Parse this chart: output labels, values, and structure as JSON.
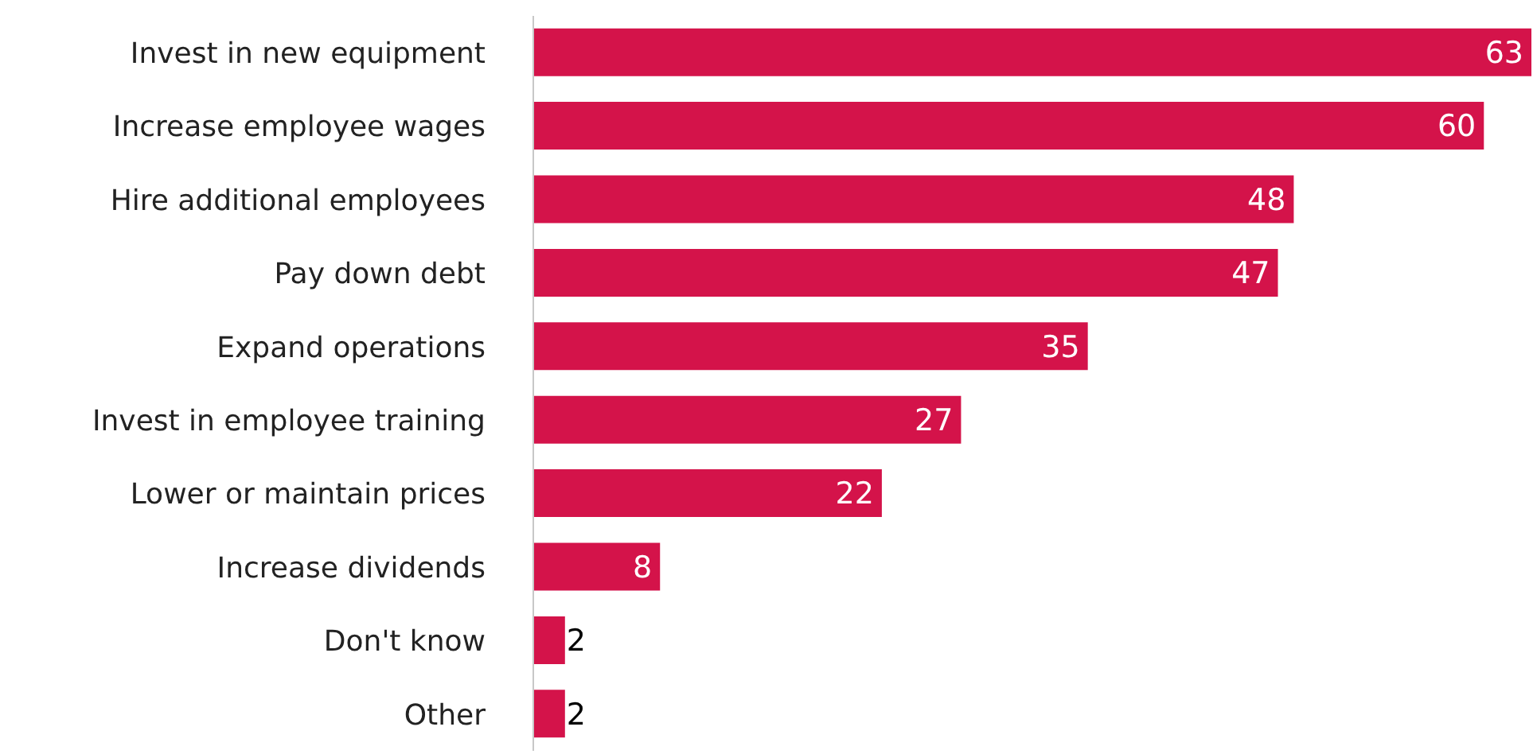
{
  "chart_data": {
    "type": "bar",
    "orientation": "horizontal",
    "categories": [
      "Invest in new equipment",
      "Increase employee wages",
      "Hire additional employees",
      "Pay down debt",
      "Expand operations",
      "Invest in employee training",
      "Lower or maintain prices",
      "Increase dividends",
      "Don't know",
      "Other"
    ],
    "values": [
      63,
      60,
      48,
      47,
      35,
      27,
      22,
      8,
      2,
      2
    ],
    "color": "#d4134a",
    "data_labels": true,
    "tick_labels": "y",
    "grid": false,
    "legend": false
  }
}
